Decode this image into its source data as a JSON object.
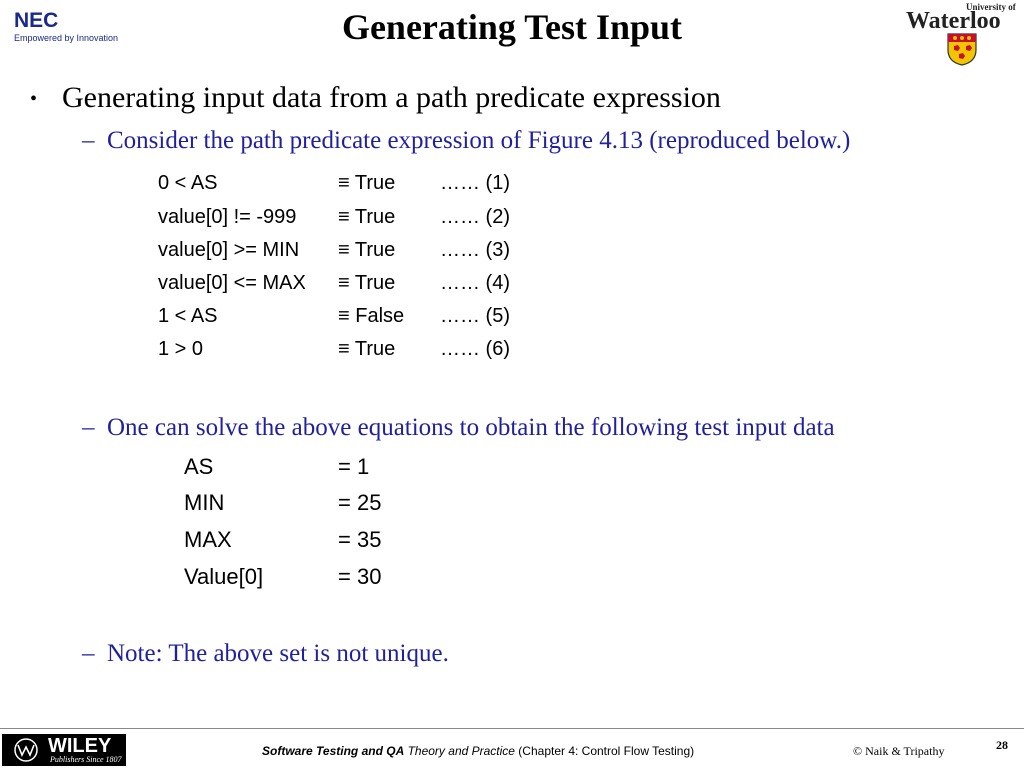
{
  "header": {
    "title": "Generating Test Input",
    "nec_logo": {
      "word": "NEC",
      "tagline": "Empowered by Innovation"
    },
    "waterloo_logo": {
      "small": "University of",
      "big": "Waterloo"
    }
  },
  "content": {
    "bullet": "•",
    "level1": "Generating input data from a path predicate expression",
    "dash": "–",
    "sub1": "Consider the path predicate expression of Figure 4.13 (reproduced below.)",
    "equations": [
      {
        "expr": "0 < AS",
        "value": "≡  True",
        "ref": "…… (1)"
      },
      {
        "expr": "value[0] != -999",
        "value": "≡ True",
        "ref": "…… (2)"
      },
      {
        "expr": "value[0] >= MIN",
        "value": "≡ True",
        "ref": "…… (3)"
      },
      {
        "expr": "value[0] <= MAX",
        "value": "≡ True",
        "ref": "…… (4)"
      },
      {
        "expr": "1 < AS",
        "value": "≡ False",
        "ref": "…… (5)"
      },
      {
        "expr": "1 > 0",
        "value": "≡ True",
        "ref": "…… (6)"
      }
    ],
    "sub2": "One can solve the above equations to obtain the following test input data",
    "solutions": [
      {
        "name": "AS",
        "value": "= 1"
      },
      {
        "name": "MIN",
        "value": "= 25"
      },
      {
        "name": "MAX",
        "value": "= 35"
      },
      {
        "name": "Value[0]",
        "value": "= 30"
      }
    ],
    "sub3": "Note: The above set is not unique."
  },
  "footer": {
    "wiley_word": "WILEY",
    "wiley_tag": "Publishers Since 1807",
    "book_bold": "Software Testing and QA",
    "book_italic": " Theory and Practice",
    "chapter": " (Chapter 4: Control Flow Testing)",
    "copyright": "© Naik & Tripathy",
    "page": "28"
  },
  "colors": {
    "sub_text": "#1f1fa0",
    "logo_blue": "#1a2a8a"
  }
}
